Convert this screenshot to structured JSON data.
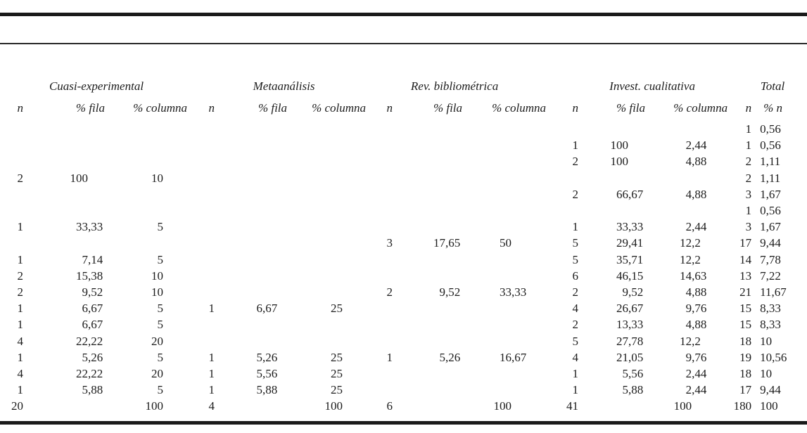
{
  "table": {
    "groups": [
      {
        "label": "Cuasi-experimental",
        "sub": [
          "n",
          "% fila",
          "% columna"
        ]
      },
      {
        "label": "Metaanálisis",
        "sub": [
          "n",
          "% fila",
          "% columna"
        ]
      },
      {
        "label": "Rev. bibliométrica",
        "sub": [
          "n",
          "% fila",
          "% columna"
        ]
      },
      {
        "label": "Invest. cualitativa",
        "sub": [
          "n",
          "% fila",
          "% columna"
        ]
      },
      {
        "label": "Total",
        "sub": [
          "n",
          "% n"
        ]
      }
    ],
    "rows": [
      [
        "",
        "",
        "",
        "",
        "",
        "",
        "",
        "",
        "",
        "",
        "",
        "",
        "1",
        "0,56"
      ],
      [
        "",
        "",
        "",
        "",
        "",
        "",
        "",
        "",
        "",
        "1",
        "100",
        "2,44",
        "1",
        "0,56"
      ],
      [
        "",
        "",
        "",
        "",
        "",
        "",
        "",
        "",
        "",
        "2",
        "100",
        "4,88",
        "2",
        "1,11"
      ],
      [
        "2",
        "100",
        "10",
        "",
        "",
        "",
        "",
        "",
        "",
        "",
        "",
        "",
        "2",
        "1,11"
      ],
      [
        "",
        "",
        "",
        "",
        "",
        "",
        "",
        "",
        "",
        "2",
        "66,67",
        "4,88",
        "3",
        "1,67"
      ],
      [
        "",
        "",
        "",
        "",
        "",
        "",
        "",
        "",
        "",
        "",
        "",
        "",
        "1",
        "0,56"
      ],
      [
        "1",
        "33,33",
        "5",
        "",
        "",
        "",
        "",
        "",
        "",
        "1",
        "33,33",
        "2,44",
        "3",
        "1,67"
      ],
      [
        "",
        "",
        "",
        "",
        "",
        "",
        "3",
        "17,65",
        "50",
        "5",
        "29,41",
        "12,2",
        "17",
        "9,44"
      ],
      [
        "1",
        "7,14",
        "5",
        "",
        "",
        "",
        "",
        "",
        "",
        "5",
        "35,71",
        "12,2",
        "14",
        "7,78"
      ],
      [
        "2",
        "15,38",
        "10",
        "",
        "",
        "",
        "",
        "",
        "",
        "6",
        "46,15",
        "14,63",
        "13",
        "7,22"
      ],
      [
        "2",
        "9,52",
        "10",
        "",
        "",
        "",
        "2",
        "9,52",
        "33,33",
        "2",
        "9,52",
        "4,88",
        "21",
        "11,67"
      ],
      [
        "1",
        "6,67",
        "5",
        "1",
        "6,67",
        "25",
        "",
        "",
        "",
        "4",
        "26,67",
        "9,76",
        "15",
        "8,33"
      ],
      [
        "1",
        "6,67",
        "5",
        "",
        "",
        "",
        "",
        "",
        "",
        "2",
        "13,33",
        "4,88",
        "15",
        "8,33"
      ],
      [
        "4",
        "22,22",
        "20",
        "",
        "",
        "",
        "",
        "",
        "",
        "5",
        "27,78",
        "12,2",
        "18",
        "10"
      ],
      [
        "1",
        "5,26",
        "5",
        "1",
        "5,26",
        "25",
        "1",
        "5,26",
        "16,67",
        "4",
        "21,05",
        "9,76",
        "19",
        "10,56"
      ],
      [
        "4",
        "22,22",
        "20",
        "1",
        "5,56",
        "25",
        "",
        "",
        "",
        "1",
        "5,56",
        "2,44",
        "18",
        "10"
      ],
      [
        "1",
        "5,88",
        "5",
        "1",
        "5,88",
        "25",
        "",
        "",
        "",
        "1",
        "5,88",
        "2,44",
        "17",
        "9,44"
      ],
      [
        "20",
        "",
        "100",
        "4",
        "",
        "100",
        "6",
        "",
        "100",
        "41",
        "",
        "100",
        "180",
        "100"
      ]
    ]
  },
  "colors": {
    "text": "#1c1c1c",
    "rule": "#1a1a1a",
    "background": "#ffffff"
  }
}
